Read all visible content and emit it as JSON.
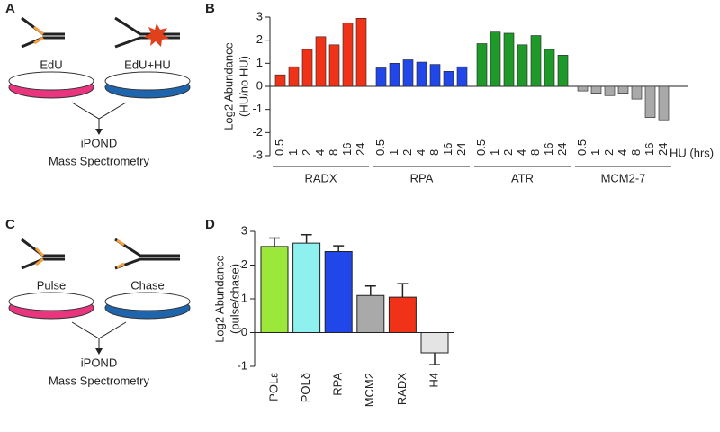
{
  "panel_labels": [
    "A",
    "B",
    "C",
    "D"
  ],
  "panel_a": {
    "labels": [
      "EdU",
      "EdU+HU"
    ],
    "method": "iPOND",
    "readout": "Mass Spectrometry"
  },
  "panel_c": {
    "labels": [
      "Pulse",
      "Chase"
    ],
    "method": "iPOND",
    "readout": "Mass Spectrometry"
  },
  "chart_data": [
    {
      "type": "grouped-bar",
      "y_label": [
        "Log2 Abundance",
        "(HU/no HU)"
      ],
      "x_label": "HU (hrs)",
      "categories": [
        "0.5",
        "1",
        "2",
        "4",
        "8",
        "16",
        "24"
      ],
      "series": [
        {
          "name": "RADX",
          "color": "#f03318",
          "values": [
            0.5,
            0.85,
            1.6,
            2.15,
            1.8,
            2.75,
            2.95
          ]
        },
        {
          "name": "RPA",
          "color": "#2247e8",
          "values": [
            0.8,
            1.0,
            1.15,
            1.05,
            0.95,
            0.65,
            0.85
          ]
        },
        {
          "name": "ATR",
          "color": "#1f9a2a",
          "values": [
            1.85,
            2.35,
            2.3,
            1.8,
            2.2,
            1.6,
            1.35
          ]
        },
        {
          "name": "MCM2-7",
          "color": "#a9a9a9",
          "values": [
            -0.2,
            -0.3,
            -0.4,
            -0.3,
            -0.55,
            -1.35,
            -1.45
          ]
        }
      ],
      "ylim": [
        -3,
        3
      ],
      "yticks": [
        -3,
        -2,
        -1,
        0,
        1,
        2,
        3
      ]
    },
    {
      "type": "bar",
      "y_label": [
        "Log2 Abundance",
        "(pulse/chase)"
      ],
      "categories": [
        "POLε",
        "POLδ",
        "RPA",
        "MCM2",
        "RADX",
        "H4"
      ],
      "values": [
        2.55,
        2.65,
        2.4,
        1.1,
        1.05,
        -0.6
      ],
      "errors": [
        0.25,
        0.25,
        0.17,
        0.28,
        0.4,
        0.35
      ],
      "colors": [
        "#9be83a",
        "#8ff0f0",
        "#2247e8",
        "#a9a9a9",
        "#f03318",
        "#e4e4e4"
      ],
      "ylim": [
        -1,
        3
      ],
      "yticks": [
        -1,
        0,
        1,
        2,
        3
      ]
    }
  ]
}
